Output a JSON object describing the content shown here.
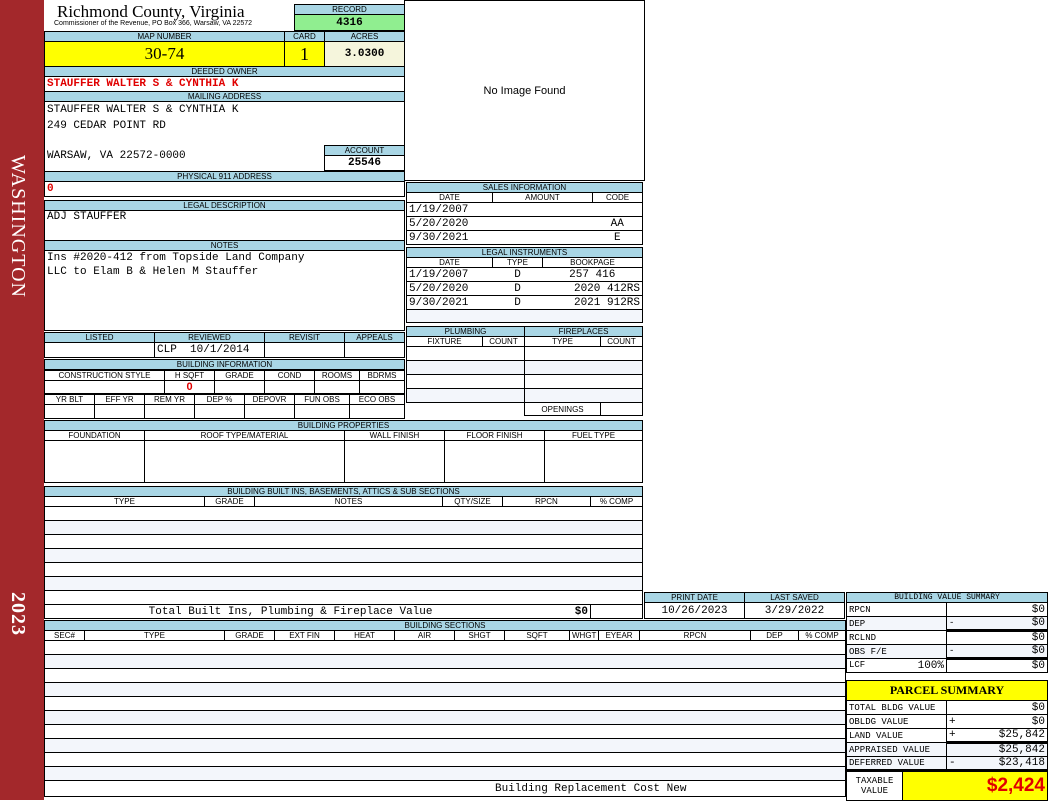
{
  "sidebar": {
    "district": "WASHINGTON",
    "year": "2023",
    "color": "#a3282b"
  },
  "header": {
    "title": "Richmond County, Virginia",
    "subtitle": "Commissioner of the Revenue, PO Box 366, Warsaw, VA 22572"
  },
  "record": {
    "label": "RECORD",
    "value": "4316"
  },
  "map": {
    "map_label": "MAP NUMBER",
    "map_value": "30-74",
    "card_label": "CARD",
    "card_value": "1",
    "acres_label": "ACRES",
    "acres_value": "3.0300"
  },
  "owner": {
    "label": "DEEDED OWNER",
    "value": "STAUFFER WALTER S & CYNTHIA K"
  },
  "mailing": {
    "label": "MAILING ADDRESS",
    "line1": "STAUFFER WALTER S & CYNTHIA K",
    "line2": "249 CEDAR POINT RD",
    "line3": "WARSAW, VA 22572-0000"
  },
  "account": {
    "label": "ACCOUNT",
    "value": "25546"
  },
  "physical": {
    "label": "PHYSICAL 911 ADDRESS",
    "value": "0"
  },
  "legal": {
    "label": "LEGAL DESCRIPTION",
    "value": "ADJ STAUFFER"
  },
  "notes": {
    "label": "NOTES",
    "line1": "Ins #2020-412 from Topside Land Company",
    "line2": "LLC to Elam B & Helen M Stauffer"
  },
  "image": {
    "text": "No Image Found"
  },
  "review": {
    "headers": [
      "LISTED",
      "REVIEWED",
      "REVISIT",
      "APPEALS"
    ],
    "listed": "",
    "reviewed_by": "CLP",
    "reviewed_date": "10/1/2014",
    "revisit": "",
    "appeals": ""
  },
  "building_info": {
    "label": "BUILDING INFORMATION",
    "headers1": [
      "CONSTRUCTION STYLE",
      "H SQFT",
      "GRADE",
      "COND",
      "ROOMS",
      "BDRMS"
    ],
    "hsqft": "0",
    "headers2": [
      "YR BLT",
      "EFF YR",
      "REM YR",
      "DEP %",
      "DEPOVR",
      "FUN OBS",
      "ECO OBS"
    ]
  },
  "sales": {
    "label": "SALES INFORMATION",
    "headers": [
      "DATE",
      "AMOUNT",
      "CODE"
    ],
    "rows": [
      {
        "date": "1/19/2007",
        "amount": "",
        "code": ""
      },
      {
        "date": "5/20/2020",
        "amount": "",
        "code": "AA"
      },
      {
        "date": "9/30/2021",
        "amount": "",
        "code": "E"
      }
    ]
  },
  "instruments": {
    "label": "LEGAL INSTRUMENTS",
    "headers": [
      "DATE",
      "TYPE",
      "BOOKPAGE"
    ],
    "rows": [
      {
        "date": "1/19/2007",
        "type": "D",
        "book": "257 416"
      },
      {
        "date": "5/20/2020",
        "type": "D",
        "book": "2020 412RS"
      },
      {
        "date": "9/30/2021",
        "type": "D",
        "book": "2021 912RS"
      }
    ]
  },
  "plumbing": {
    "label": "PLUMBING",
    "headers": [
      "FIXTURE",
      "COUNT"
    ]
  },
  "fireplaces": {
    "label": "FIREPLACES",
    "headers": [
      "TYPE",
      "COUNT"
    ],
    "openings": "OPENINGS"
  },
  "properties": {
    "label": "BUILDING PROPERTIES",
    "headers": [
      "FOUNDATION",
      "ROOF TYPE/MATERIAL",
      "WALL FINISH",
      "FLOOR FINISH",
      "FUEL TYPE"
    ]
  },
  "builtins": {
    "label": "BUILDING BUILT INS, BASEMENTS, ATTICS & SUB SECTIONS",
    "headers": [
      "TYPE",
      "GRADE",
      "NOTES",
      "QTY/SIZE",
      "RPCN",
      "% COMP"
    ],
    "total_label": "Total Built Ins, Plumbing & Fireplace Value",
    "total_value": "$0"
  },
  "dates": {
    "print_label": "PRINT DATE",
    "print_value": "10/26/2023",
    "saved_label": "LAST SAVED",
    "saved_value": "3/29/2022"
  },
  "sections": {
    "label": "BUILDING SECTIONS",
    "headers": [
      "SEC#",
      "TYPE",
      "GRADE",
      "EXT FIN",
      "HEAT",
      "AIR",
      "SHGT",
      "SQFT",
      "WHGT",
      "EYEAR",
      "RPCN",
      "DEP",
      "% COMP"
    ],
    "footer": "Building Replacement Cost New"
  },
  "bvs": {
    "label": "BUILDING VALUE SUMMARY",
    "rows": [
      {
        "name": "RPCN",
        "sign": "",
        "value": "$0"
      },
      {
        "name": "DEP",
        "sign": "-",
        "value": "$0"
      },
      {
        "name": "RCLND",
        "sign": "",
        "value": "$0"
      },
      {
        "name": "OBS F/E",
        "sign": "-",
        "value": "$0"
      },
      {
        "name": "LCF",
        "pct": "100%",
        "sign": "",
        "value": "$0"
      }
    ]
  },
  "parcel": {
    "title": "PARCEL SUMMARY",
    "rows": [
      {
        "name": "TOTAL BLDG VALUE",
        "sign": "",
        "value": "$0"
      },
      {
        "name": "OBLDG VALUE",
        "sign": "+",
        "value": "$0"
      },
      {
        "name": "LAND VALUE",
        "sign": "+",
        "value": "$25,842"
      },
      {
        "name": "APPRAISED VALUE",
        "sign": "",
        "value": "$25,842"
      },
      {
        "name": "DEFERRED VALUE",
        "sign": "-",
        "value": "$23,418"
      }
    ],
    "taxable_label1": "TAXABLE",
    "taxable_label2": "VALUE",
    "taxable_value": "$2,424"
  }
}
